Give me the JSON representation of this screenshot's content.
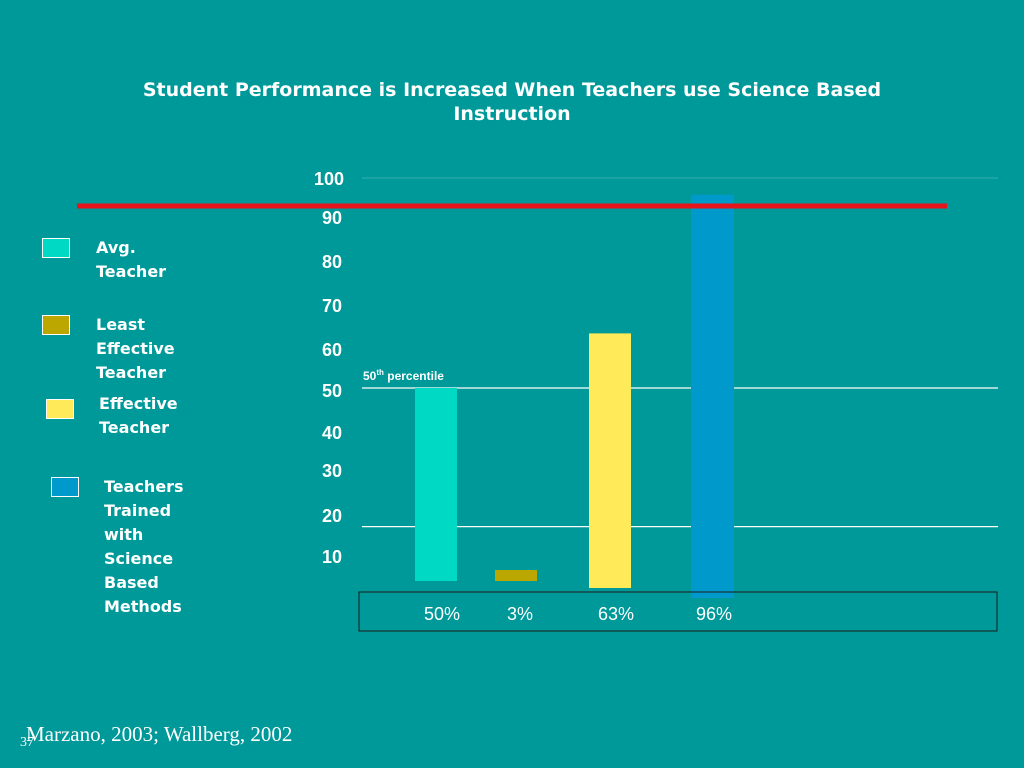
{
  "slide": {
    "title": "Student Performance is Increased When Teachers use Science Based Instruction",
    "citation": "Marzano, 2003; Wallberg, 2002",
    "slide_number": "37"
  },
  "legend": [
    {
      "label": "Avg. Teacher",
      "color": "#00d9c3"
    },
    {
      "label": " Least Effective\nTeacher",
      "color": "#bca600"
    },
    {
      "label": "Effective Teacher",
      "color": "#ffeb5a"
    },
    {
      "label": "Teachers Trained\nwith Science Based\nMethods",
      "color": "#0099cc"
    }
  ],
  "colors": {
    "background": "#009999",
    "reference_line": "#e8141b",
    "gridline": "#ffffff"
  },
  "chart_data": {
    "type": "bar",
    "title": "Student Performance is Increased When Teachers use Science Based Instruction",
    "categories": [
      "Avg. Teacher",
      "Least Effective Teacher",
      "Effective Teacher",
      "Teachers Trained with Science Based Methods"
    ],
    "values": [
      50,
      3,
      63,
      96
    ],
    "value_labels": [
      "50%",
      "3%",
      "63%",
      "96%"
    ],
    "yticks": [
      "100",
      "90",
      "80",
      "70",
      "60",
      "50",
      "40",
      "30",
      "20",
      "10"
    ],
    "annotation": {
      "text": "50",
      "sup": "th",
      "rest": " percentile",
      "value": 50
    },
    "reference_line_value": 93,
    "gridlines": [
      100,
      50,
      17
    ],
    "ylim": [
      0,
      100
    ],
    "xlabel": "",
    "ylabel": ""
  }
}
